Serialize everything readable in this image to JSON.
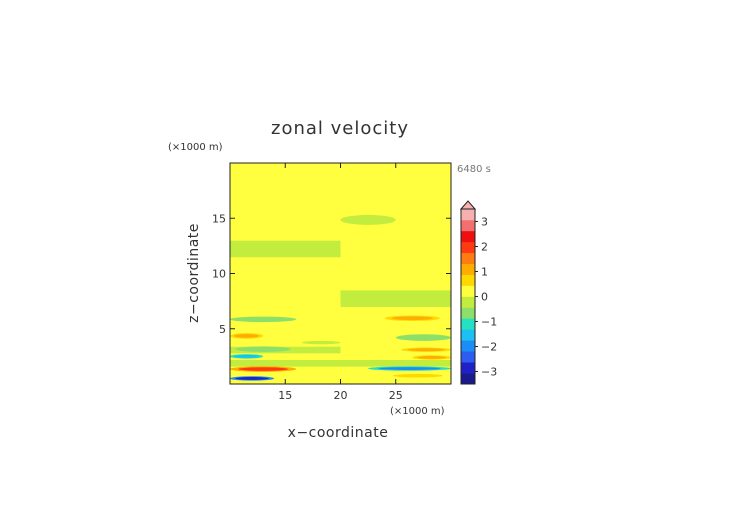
{
  "chart_data": {
    "type": "heatmap",
    "title": "zonal velocity",
    "xlabel": "x−coordinate",
    "ylabel": "z−coordinate",
    "x_unit": "(×1000 m)",
    "y_unit": "(×1000 m)",
    "time_label": "6480 s",
    "xlim": [
      10,
      30
    ],
    "ylim": [
      0,
      20
    ],
    "x_ticks": [
      15,
      20,
      25
    ],
    "y_ticks": [
      5,
      10,
      15
    ],
    "colorbar": {
      "min": -3.5,
      "max": 3.5,
      "ticks": [
        3,
        2,
        1,
        0,
        -1,
        -2,
        -3
      ],
      "colors": [
        "#1a1a8c",
        "#2020c8",
        "#2c5cf0",
        "#1b8ef5",
        "#1cc0f2",
        "#25e0c2",
        "#8ce06a",
        "#c2ec3e",
        "#ffff40",
        "#ffd800",
        "#ffac00",
        "#ff7c10",
        "#ff3a10",
        "#ee1010",
        "#f27070",
        "#f6b0b0"
      ]
    },
    "levels": [
      {
        "z": [
          0.0,
          0.5
        ],
        "left": 0.3,
        "right": 0.3
      },
      {
        "z": [
          0.5,
          1.0
        ],
        "left": 0.2,
        "right": 0.2
      },
      {
        "z": [
          1.0,
          1.6
        ],
        "left": 0.3,
        "right": 0.3
      },
      {
        "z": [
          1.6,
          2.2
        ],
        "left": -0.1,
        "right": -0.1
      },
      {
        "z": [
          2.2,
          2.8
        ],
        "left": 0.2,
        "right": 0.2
      },
      {
        "z": [
          2.8,
          3.4
        ],
        "left": -0.1,
        "right": 0.0
      },
      {
        "z": [
          3.4,
          4.0
        ],
        "left": 0.2,
        "right": 0.1
      },
      {
        "z": [
          4.0,
          4.8
        ],
        "left": 0.4,
        "right": 0.2
      },
      {
        "z": [
          4.8,
          5.4
        ],
        "left": 0.2,
        "right": 0.2
      },
      {
        "z": [
          5.4,
          6.3
        ],
        "left": 0.1,
        "right": 0.3
      },
      {
        "z": [
          6.3,
          7.0
        ],
        "left": 0.2,
        "right": 0.3
      },
      {
        "z": [
          7.0,
          8.5
        ],
        "left": 0.2,
        "right": -0.1
      },
      {
        "z": [
          8.5,
          10.0
        ],
        "left": 0.3,
        "right": 0.0
      },
      {
        "z": [
          10.0,
          11.5
        ],
        "left": 0.0,
        "right": 0.3
      },
      {
        "z": [
          11.5,
          13.0
        ],
        "left": -0.1,
        "right": 0.2
      },
      {
        "z": [
          13.0,
          14.0
        ],
        "left": 0.3,
        "right": 0.3
      },
      {
        "z": [
          14.0,
          15.5
        ],
        "left": 0.1,
        "right": 0.3
      },
      {
        "z": [
          15.5,
          17.0
        ],
        "left": 0.3,
        "right": 0.1
      },
      {
        "z": [
          17.0,
          18.5
        ],
        "left": 0.0,
        "right": 0.2
      },
      {
        "z": [
          18.5,
          20.0
        ],
        "left": 0.3,
        "right": 0.3
      }
    ],
    "features": [
      {
        "x0": 10.0,
        "x1": 14.0,
        "z0": 0.3,
        "z1": 0.7,
        "value": -3.0
      },
      {
        "x0": 10.0,
        "x1": 16.0,
        "z0": 1.1,
        "z1": 1.6,
        "value": 2.0
      },
      {
        "x0": 10.0,
        "x1": 13.0,
        "z0": 2.3,
        "z1": 2.7,
        "value": -1.5
      },
      {
        "x0": 10.5,
        "x1": 15.5,
        "z0": 2.9,
        "z1": 3.4,
        "value": -0.8
      },
      {
        "x0": 10.0,
        "x1": 13.0,
        "z0": 4.1,
        "z1": 4.6,
        "value": 1.0
      },
      {
        "x0": 10.0,
        "x1": 16.0,
        "z0": 5.6,
        "z1": 6.1,
        "value": -0.8
      },
      {
        "x0": 22.5,
        "x1": 30.0,
        "z0": 1.2,
        "z1": 1.6,
        "value": -2.0
      },
      {
        "x0": 24.0,
        "x1": 30.0,
        "z0": 0.5,
        "z1": 1.0,
        "value": 0.8
      },
      {
        "x0": 26.5,
        "x1": 30.0,
        "z0": 2.2,
        "z1": 2.6,
        "value": 1.0
      },
      {
        "x0": 25.5,
        "x1": 30.0,
        "z0": 2.9,
        "z1": 3.3,
        "value": 1.0
      },
      {
        "x0": 25.0,
        "x1": 30.0,
        "z0": 3.9,
        "z1": 4.5,
        "value": -0.8
      },
      {
        "x0": 24.0,
        "x1": 29.0,
        "z0": 5.7,
        "z1": 6.2,
        "value": 1.0
      },
      {
        "x0": 16.5,
        "x1": 20.0,
        "z0": 3.6,
        "z1": 3.9,
        "value": -0.2
      },
      {
        "x0": 20.0,
        "x1": 25.0,
        "z0": 14.4,
        "z1": 15.3,
        "value": -0.1
      }
    ]
  }
}
